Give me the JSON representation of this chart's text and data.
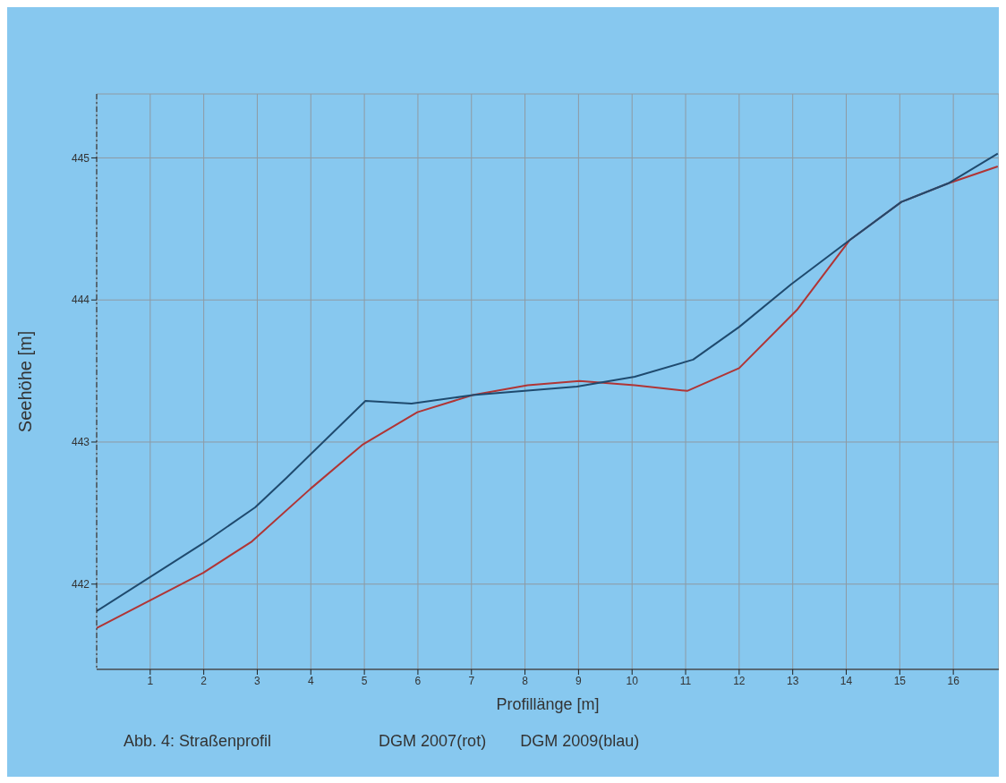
{
  "chart_data": {
    "type": "line",
    "xlabel": "Profillänge [m]",
    "ylabel": "Seehöhe [m]",
    "annotations": [
      "Abb. 4: Straßenprofil",
      "DGM 2007(rot)",
      "DGM 2009(blau)"
    ],
    "xlim": [
      0,
      16.85
    ],
    "xticks": [
      1,
      2,
      3,
      4,
      5,
      6,
      7,
      8,
      9,
      10,
      11,
      12,
      13,
      14,
      15,
      16
    ],
    "ylim": [
      441.4,
      445.45
    ],
    "yticks": [
      442,
      443,
      444,
      445
    ],
    "grid": true,
    "line_style": "solid",
    "marker": "none",
    "series": [
      {
        "color": "#b03535",
        "x": [
          0,
          1.99,
          2.9,
          3.99,
          4.96,
          5.99,
          7.02,
          8.05,
          9.02,
          10.05,
          11.03,
          12.0,
          13.08,
          14.06,
          15.03,
          15.9,
          16.83
        ],
        "values": [
          441.69,
          442.08,
          442.3,
          442.67,
          442.98,
          443.21,
          443.33,
          443.4,
          443.43,
          443.4,
          443.36,
          443.52,
          443.93,
          444.42,
          444.69,
          444.82,
          444.94
        ]
      },
      {
        "color": "#1f4a6e",
        "x": [
          0,
          2.0,
          2.96,
          3.55,
          5.02,
          5.88,
          7.02,
          8.97,
          10.05,
          11.14,
          12.0,
          12.97,
          14.06,
          15.03,
          15.9,
          16.83
        ],
        "values": [
          441.81,
          442.29,
          442.54,
          442.75,
          443.29,
          443.27,
          443.33,
          443.39,
          443.46,
          443.58,
          443.81,
          444.11,
          444.42,
          444.69,
          444.82,
          445.03
        ]
      }
    ]
  }
}
